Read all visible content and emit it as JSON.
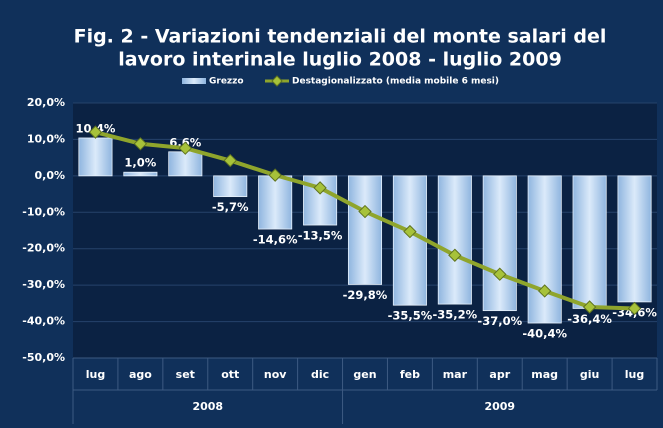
{
  "chart_data": {
    "type": "bar_line",
    "title_lines": [
      "Fig. 2 - Variazioni tendenziali del monte salari del",
      "lavoro interinale luglio 2008 -  luglio 2009"
    ],
    "categories": [
      "lug",
      "ago",
      "set",
      "ott",
      "nov",
      "dic",
      "gen",
      "feb",
      "mar",
      "apr",
      "mag",
      "giu",
      "lug"
    ],
    "groups": [
      {
        "label": "2008",
        "span": 6
      },
      {
        "label": "2009",
        "span": 7
      }
    ],
    "series": [
      {
        "name": "Grezzo",
        "type": "bar",
        "color": "#b9d4f0",
        "values": [
          10.4,
          1.0,
          6.6,
          -5.7,
          -14.6,
          -13.5,
          -29.8,
          -35.5,
          -35.2,
          -37.0,
          -40.4,
          -36.4,
          -34.6
        ],
        "value_labels": [
          "10,4%",
          "1,0%",
          "6,6%",
          "-5,7%",
          "-14,6%",
          "-13,5%",
          "-29,8%",
          "-35,5%",
          "-35,2%",
          "-37,0%",
          "-40,4%",
          "-36,4%",
          "-34,6%"
        ]
      },
      {
        "name": "Destagionalizzato  (media mobile 6 mesi)",
        "type": "line",
        "color": "#8fa52c",
        "values": [
          12.0,
          8.8,
          7.6,
          4.2,
          0.2,
          -3.3,
          -9.8,
          -15.3,
          -21.8,
          -27.0,
          -31.6,
          -36.0,
          -36.4
        ]
      }
    ],
    "ylim": [
      -50,
      20
    ],
    "yticks": [
      {
        "value": -50,
        "label": "-50,0%"
      },
      {
        "value": -40,
        "label": "-40,0%"
      },
      {
        "value": -30,
        "label": "-30,0%"
      },
      {
        "value": -20,
        "label": "-20,0%"
      },
      {
        "value": -10,
        "label": "-10,0%"
      },
      {
        "value": 0,
        "label": "0,0%"
      },
      {
        "value": 10,
        "label": "10,0%"
      },
      {
        "value": 20,
        "label": "20,0%"
      }
    ],
    "grid": true
  }
}
